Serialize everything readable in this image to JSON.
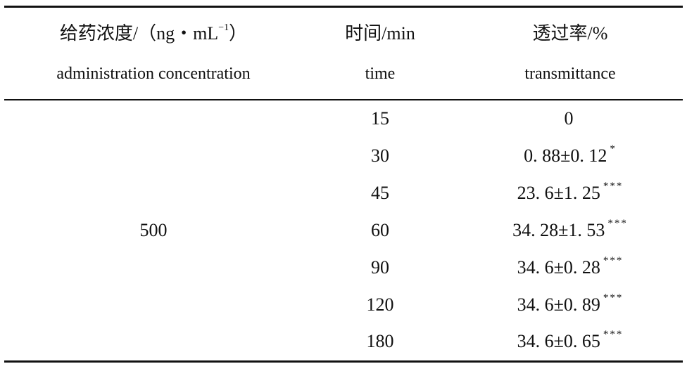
{
  "header": {
    "col1_cn_prefix": "给药浓度/（ng・mL",
    "col1_cn_sup": "−1",
    "col1_cn_suffix": "）",
    "col1_en": "administration concentration",
    "col2_cn": "时间/min",
    "col2_en": "time",
    "col3_cn": "透过率/%",
    "col3_en": "transmittance"
  },
  "concentration": "500",
  "rows": [
    {
      "time": "15",
      "value": "0",
      "sig": ""
    },
    {
      "time": "30",
      "value": "0. 88±0. 12",
      "sig": "*"
    },
    {
      "time": "45",
      "value": "23. 6±1. 25",
      "sig": "***"
    },
    {
      "time": "60",
      "value": "34. 28±1. 53",
      "sig": "***"
    },
    {
      "time": "90",
      "value": "34. 6±0. 28",
      "sig": "***"
    },
    {
      "time": "120",
      "value": "34. 6±0. 89",
      "sig": "***"
    },
    {
      "time": "180",
      "value": "34. 6±0. 65",
      "sig": "***"
    }
  ]
}
